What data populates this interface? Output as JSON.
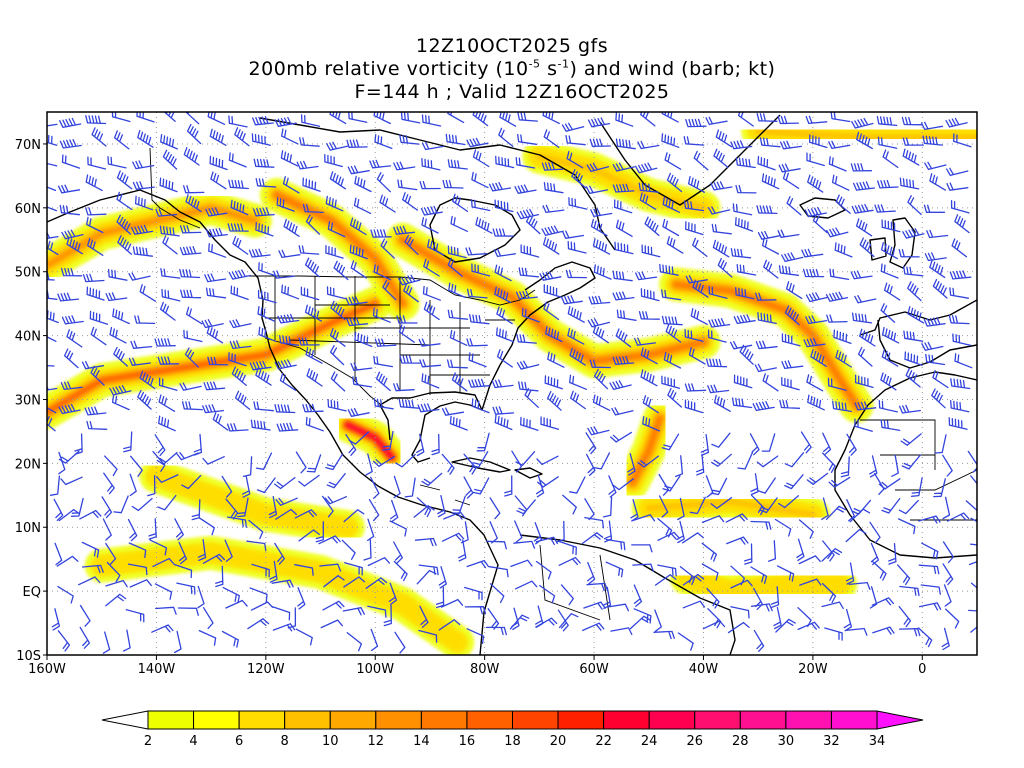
{
  "title": {
    "line1": "12Z10OCT2025 gfs",
    "line2_pre": "200mb relative vorticity (10",
    "line2_sup1": "-5",
    "line2_mid": " s",
    "line2_sup2": "-1",
    "line2_post": ") and wind (barb; kt)",
    "line3": "F=144 h ; Valid 12Z16OCT2025"
  },
  "map": {
    "lon_range": [
      -160,
      10
    ],
    "lat_range": [
      -10,
      75
    ],
    "lon_labels": [
      {
        "lon": -160,
        "text": "160W"
      },
      {
        "lon": -140,
        "text": "140W"
      },
      {
        "lon": -120,
        "text": "120W"
      },
      {
        "lon": -100,
        "text": "100W"
      },
      {
        "lon": -80,
        "text": "80W"
      },
      {
        "lon": -60,
        "text": "60W"
      },
      {
        "lon": -40,
        "text": "40W"
      },
      {
        "lon": -20,
        "text": "20W"
      },
      {
        "lon": 0,
        "text": "0"
      }
    ],
    "lat_labels": [
      {
        "lat": 70,
        "text": "70N"
      },
      {
        "lat": 60,
        "text": "60N"
      },
      {
        "lat": 50,
        "text": "50N"
      },
      {
        "lat": 40,
        "text": "40N"
      },
      {
        "lat": 30,
        "text": "30N"
      },
      {
        "lat": 20,
        "text": "20N"
      },
      {
        "lat": 10,
        "text": "10N"
      },
      {
        "lat": 0,
        "text": "EQ"
      },
      {
        "lat": -10,
        "text": "10S"
      }
    ],
    "grid": true,
    "barb_color": "#3344dd"
  },
  "vorticity_bands": [
    {
      "pts": [
        [
          -160,
          28
        ],
        [
          -150,
          33
        ],
        [
          -135,
          35
        ],
        [
          -120,
          37
        ],
        [
          -108,
          42
        ],
        [
          -100,
          45
        ]
      ],
      "peak": 16
    },
    {
      "pts": [
        [
          -160,
          51
        ],
        [
          -150,
          56
        ],
        [
          -140,
          58
        ],
        [
          -130,
          60
        ],
        [
          -122,
          58
        ]
      ],
      "peak": 12
    },
    {
      "pts": [
        [
          -118,
          62
        ],
        [
          -108,
          58
        ],
        [
          -100,
          52
        ],
        [
          -95,
          45
        ]
      ],
      "peak": 14
    },
    {
      "pts": [
        [
          -95,
          55
        ],
        [
          -85,
          50
        ],
        [
          -75,
          46
        ],
        [
          -68,
          40
        ],
        [
          -60,
          36
        ],
        [
          -50,
          37
        ],
        [
          -40,
          39
        ]
      ],
      "peak": 14
    },
    {
      "pts": [
        [
          -45,
          48
        ],
        [
          -35,
          47
        ],
        [
          -25,
          44
        ],
        [
          -20,
          40
        ],
        [
          -15,
          33
        ],
        [
          -12,
          29
        ]
      ],
      "peak": 14
    },
    {
      "pts": [
        [
          -105,
          26
        ],
        [
          -100,
          24
        ],
        [
          -97,
          21
        ]
      ],
      "peak": 22
    },
    {
      "pts": [
        [
          -53,
          17
        ],
        [
          -50,
          22
        ],
        [
          -48,
          27
        ]
      ],
      "peak": 14
    },
    {
      "pts": [
        [
          -70,
          68
        ],
        [
          -60,
          66
        ],
        [
          -50,
          62
        ],
        [
          -40,
          60
        ]
      ],
      "peak": 8
    },
    {
      "pts": [
        [
          -30,
          72
        ],
        [
          -10,
          71
        ],
        [
          10,
          71
        ]
      ],
      "peak": 8
    },
    {
      "pts": [
        [
          -43,
          2
        ],
        [
          -35,
          0
        ],
        [
          -25,
          1
        ],
        [
          -15,
          1
        ]
      ],
      "peak": 6
    },
    {
      "pts": [
        [
          -150,
          4
        ],
        [
          -130,
          6
        ],
        [
          -110,
          3
        ],
        [
          -95,
          -2
        ],
        [
          -85,
          -8
        ]
      ],
      "peak": 6
    },
    {
      "pts": [
        [
          -50,
          13
        ],
        [
          -35,
          14
        ],
        [
          -20,
          12
        ]
      ],
      "peak": 8
    },
    {
      "pts": [
        [
          -140,
          18
        ],
        [
          -120,
          12
        ],
        [
          -105,
          10
        ]
      ],
      "peak": 6
    }
  ],
  "colorbar": {
    "labels": [
      "2",
      "4",
      "6",
      "8",
      "10",
      "12",
      "14",
      "16",
      "18",
      "20",
      "22",
      "24",
      "26",
      "28",
      "30",
      "32",
      "34"
    ],
    "colors": [
      "#eeff00",
      "#ffff00",
      "#ffdd00",
      "#ffc000",
      "#ffa800",
      "#ff9000",
      "#ff7800",
      "#ff6000",
      "#ff4400",
      "#ff2000",
      "#ff0030",
      "#ff0050",
      "#ff1070",
      "#ff1090",
      "#ff10b0",
      "#ff10d0"
    ],
    "under_color": "#ffffff",
    "over_color": "#ff10ff"
  }
}
